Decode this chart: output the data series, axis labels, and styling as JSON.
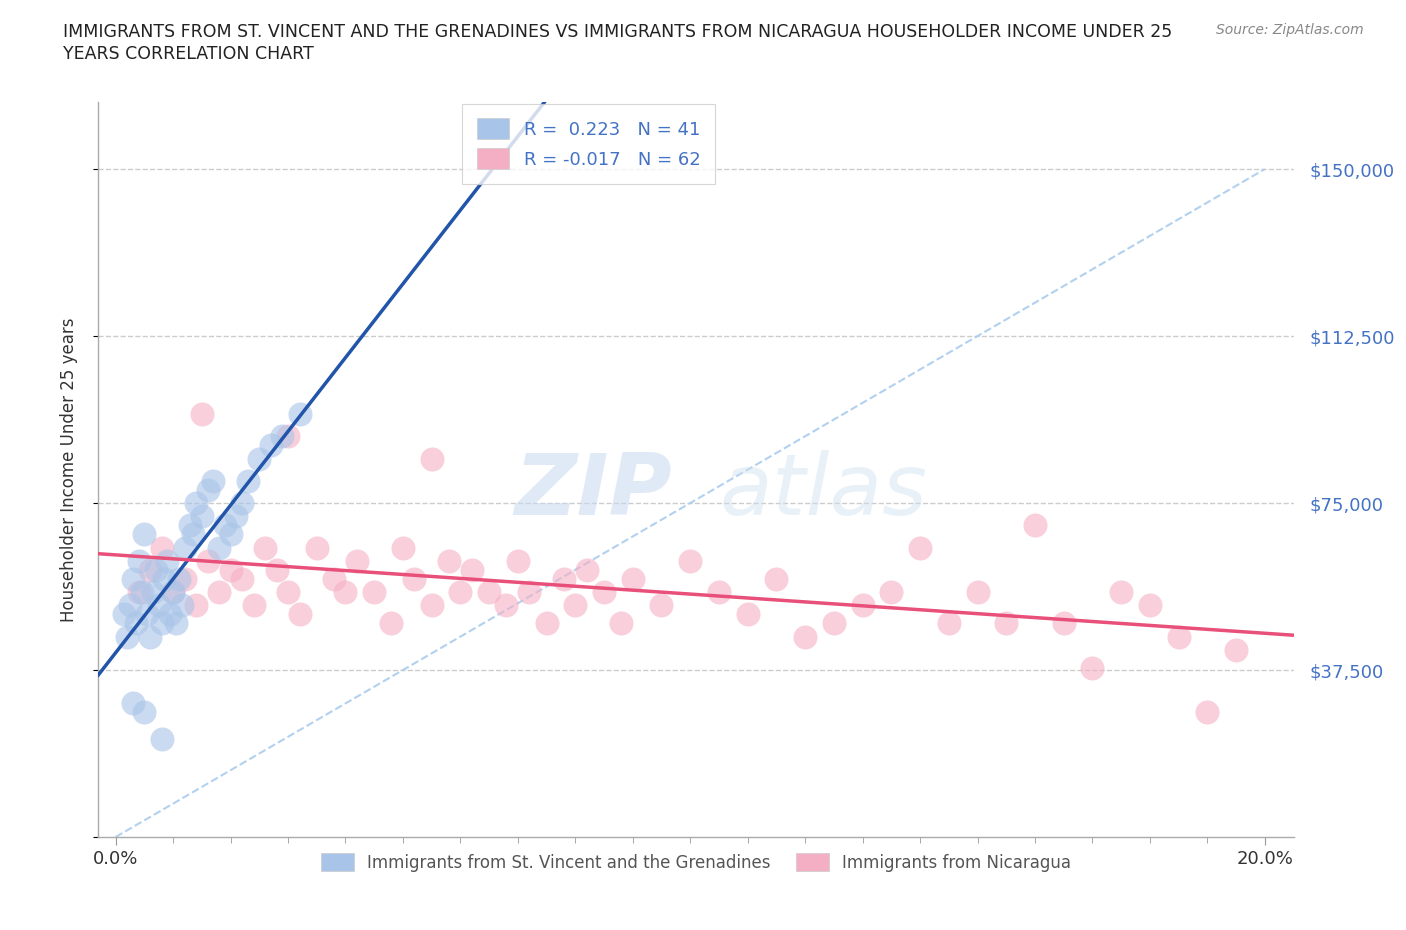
{
  "title_line1": "IMMIGRANTS FROM ST. VINCENT AND THE GRENADINES VS IMMIGRANTS FROM NICARAGUA HOUSEHOLDER INCOME UNDER 25",
  "title_line2": "YEARS CORRELATION CHART",
  "source": "Source: ZipAtlas.com",
  "ylabel": "Householder Income Under 25 years",
  "xlabel_ticks": [
    "0.0%",
    "20.0%"
  ],
  "xlabel_vals": [
    0.0,
    20.0
  ],
  "yticks": [
    0,
    37500,
    75000,
    112500,
    150000
  ],
  "ytick_labels": [
    "",
    "$37,500",
    "$75,000",
    "$112,500",
    "$150,000"
  ],
  "xlim": [
    -0.3,
    20.5
  ],
  "ylim": [
    0,
    165000
  ],
  "blue_R": "0.223",
  "blue_N": "41",
  "pink_R": "-0.017",
  "pink_N": "62",
  "blue_label": "Immigrants from St. Vincent and the Grenadines",
  "pink_label": "Immigrants from Nicaragua",
  "blue_color": "#a8c4e8",
  "pink_color": "#f5afc5",
  "blue_line_color": "#2255aa",
  "pink_line_color": "#e8507a",
  "ref_line_color": "#aaccee",
  "watermark_zip": "ZIP",
  "watermark_atlas": "atlas",
  "blue_x": [
    0.15,
    0.2,
    0.25,
    0.3,
    0.35,
    0.4,
    0.45,
    0.5,
    0.55,
    0.6,
    0.65,
    0.7,
    0.75,
    0.8,
    0.85,
    0.9,
    0.95,
    1.0,
    1.05,
    1.1,
    1.15,
    1.2,
    1.3,
    1.35,
    1.4,
    1.5,
    1.6,
    1.7,
    1.8,
    1.9,
    2.0,
    2.1,
    2.2,
    2.3,
    2.5,
    2.7,
    2.9,
    3.2,
    0.3,
    0.5,
    0.8
  ],
  "blue_y": [
    50000,
    45000,
    52000,
    58000,
    48000,
    62000,
    55000,
    68000,
    50000,
    45000,
    55000,
    60000,
    52000,
    48000,
    58000,
    62000,
    50000,
    55000,
    48000,
    58000,
    52000,
    65000,
    70000,
    68000,
    75000,
    72000,
    78000,
    80000,
    65000,
    70000,
    68000,
    72000,
    75000,
    80000,
    85000,
    88000,
    90000,
    95000,
    30000,
    28000,
    22000
  ],
  "pink_x": [
    0.4,
    0.6,
    0.8,
    1.0,
    1.2,
    1.4,
    1.6,
    1.8,
    2.0,
    2.2,
    2.4,
    2.6,
    2.8,
    3.0,
    3.2,
    3.5,
    3.8,
    4.0,
    4.2,
    4.5,
    4.8,
    5.0,
    5.2,
    5.5,
    5.8,
    6.0,
    6.2,
    6.5,
    6.8,
    7.0,
    7.2,
    7.5,
    7.8,
    8.0,
    8.2,
    8.5,
    8.8,
    9.0,
    9.5,
    10.0,
    10.5,
    11.0,
    11.5,
    12.0,
    12.5,
    13.0,
    13.5,
    14.0,
    14.5,
    15.0,
    15.5,
    16.0,
    16.5,
    17.0,
    17.5,
    18.0,
    18.5,
    19.0,
    19.5,
    1.5,
    3.0,
    5.5
  ],
  "pink_y": [
    55000,
    60000,
    65000,
    55000,
    58000,
    52000,
    62000,
    55000,
    60000,
    58000,
    52000,
    65000,
    60000,
    55000,
    50000,
    65000,
    58000,
    55000,
    62000,
    55000,
    48000,
    65000,
    58000,
    52000,
    62000,
    55000,
    60000,
    55000,
    52000,
    62000,
    55000,
    48000,
    58000,
    52000,
    60000,
    55000,
    48000,
    58000,
    52000,
    62000,
    55000,
    50000,
    58000,
    45000,
    48000,
    52000,
    55000,
    65000,
    48000,
    55000,
    48000,
    70000,
    48000,
    38000,
    55000,
    52000,
    45000,
    28000,
    42000,
    95000,
    90000,
    85000
  ]
}
